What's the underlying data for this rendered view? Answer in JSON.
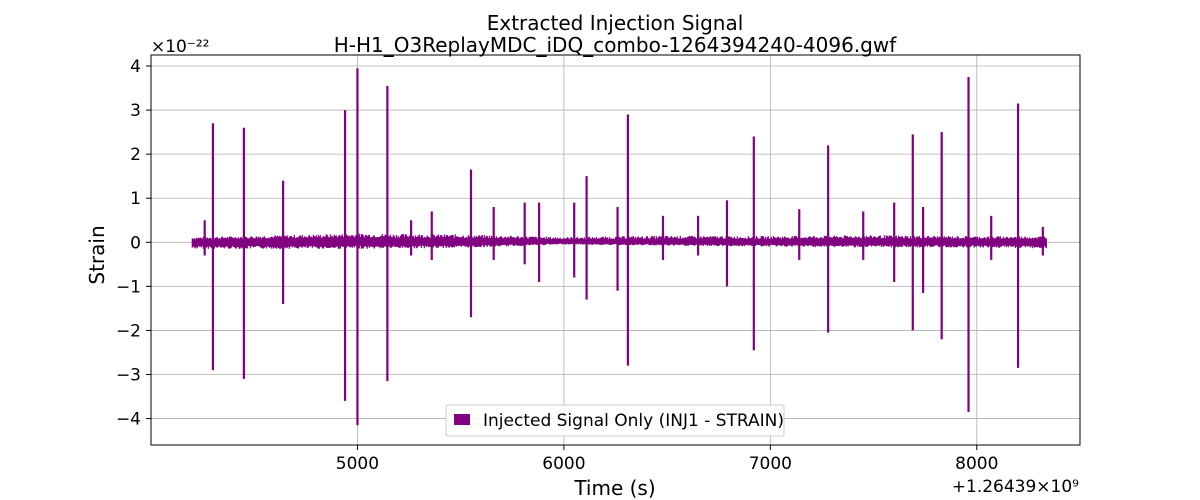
{
  "chart_data": {
    "type": "line",
    "title": "Extracted Injection Signal",
    "subtitle": "H-H1_O3ReplayMDC_iDQ_combo-1264394240-4096.gwf",
    "xlabel": "Time (s)",
    "ylabel": "Strain",
    "y_scale_label": "×10⁻²²",
    "x_offset_label": "+1.26439×10⁹",
    "xlim": [
      4000,
      8500
    ],
    "ylim": [
      -4.6,
      4.25
    ],
    "x_ticks": [
      5000,
      6000,
      7000,
      8000
    ],
    "x_tick_labels": [
      "5000",
      "6000",
      "7000",
      "8000"
    ],
    "y_ticks": [
      -4,
      -3,
      -2,
      -1,
      0,
      1,
      2,
      3,
      4
    ],
    "y_tick_labels": [
      "−4",
      "−3",
      "−2",
      "−1",
      "0",
      "1",
      "2",
      "3",
      "4"
    ],
    "grid": true,
    "legend_position": "bottom-center",
    "series": [
      {
        "name": "Injected Signal Only (INJ1 - STRAIN)",
        "color": "#800080",
        "band_x": [
          4200,
          8340
        ],
        "band_env": [
          {
            "x": 4200,
            "hi": 0.12,
            "lo": -0.15
          },
          {
            "x": 5000,
            "hi": 0.2,
            "lo": -0.15
          },
          {
            "x": 5500,
            "hi": 0.18,
            "lo": -0.13
          },
          {
            "x": 6000,
            "hi": 0.12,
            "lo": -0.05
          },
          {
            "x": 6500,
            "hi": 0.15,
            "lo": -0.08
          },
          {
            "x": 7000,
            "hi": 0.14,
            "lo": -0.1
          },
          {
            "x": 7500,
            "hi": 0.16,
            "lo": -0.12
          },
          {
            "x": 8000,
            "hi": 0.14,
            "lo": -0.12
          },
          {
            "x": 8340,
            "hi": 0.14,
            "lo": -0.14
          }
        ],
        "spikes": [
          {
            "x": 4260,
            "hi": 0.5,
            "lo": -0.3
          },
          {
            "x": 4300,
            "hi": 2.7,
            "lo": -2.9
          },
          {
            "x": 4450,
            "hi": 2.6,
            "lo": -3.1
          },
          {
            "x": 4640,
            "hi": 1.4,
            "lo": -1.4
          },
          {
            "x": 4940,
            "hi": 3.0,
            "lo": -3.6
          },
          {
            "x": 5000,
            "hi": 3.95,
            "lo": -4.15
          },
          {
            "x": 5145,
            "hi": 3.55,
            "lo": -3.15
          },
          {
            "x": 5260,
            "hi": 0.5,
            "lo": -0.3
          },
          {
            "x": 5360,
            "hi": 0.7,
            "lo": -0.4
          },
          {
            "x": 5550,
            "hi": 1.65,
            "lo": -1.7
          },
          {
            "x": 5660,
            "hi": 0.8,
            "lo": -0.4
          },
          {
            "x": 5810,
            "hi": 0.9,
            "lo": -0.5
          },
          {
            "x": 5880,
            "hi": 0.9,
            "lo": -0.9
          },
          {
            "x": 6050,
            "hi": 0.9,
            "lo": -0.8
          },
          {
            "x": 6110,
            "hi": 1.5,
            "lo": -1.3
          },
          {
            "x": 6260,
            "hi": 0.8,
            "lo": -1.1
          },
          {
            "x": 6310,
            "hi": 2.9,
            "lo": -2.8
          },
          {
            "x": 6480,
            "hi": 0.6,
            "lo": -0.4
          },
          {
            "x": 6650,
            "hi": 0.6,
            "lo": -0.3
          },
          {
            "x": 6790,
            "hi": 0.95,
            "lo": -1.0
          },
          {
            "x": 6920,
            "hi": 2.4,
            "lo": -2.45
          },
          {
            "x": 7140,
            "hi": 0.75,
            "lo": -0.4
          },
          {
            "x": 7280,
            "hi": 2.2,
            "lo": -2.05
          },
          {
            "x": 7450,
            "hi": 0.7,
            "lo": -0.4
          },
          {
            "x": 7600,
            "hi": 0.9,
            "lo": -0.9
          },
          {
            "x": 7690,
            "hi": 2.45,
            "lo": -2.0
          },
          {
            "x": 7740,
            "hi": 0.8,
            "lo": -1.15
          },
          {
            "x": 7830,
            "hi": 2.5,
            "lo": -2.2
          },
          {
            "x": 7960,
            "hi": 3.75,
            "lo": -3.85
          },
          {
            "x": 8070,
            "hi": 0.6,
            "lo": -0.4
          },
          {
            "x": 8200,
            "hi": 3.15,
            "lo": -2.85
          },
          {
            "x": 8320,
            "hi": 0.35,
            "lo": -0.3
          }
        ]
      }
    ]
  }
}
